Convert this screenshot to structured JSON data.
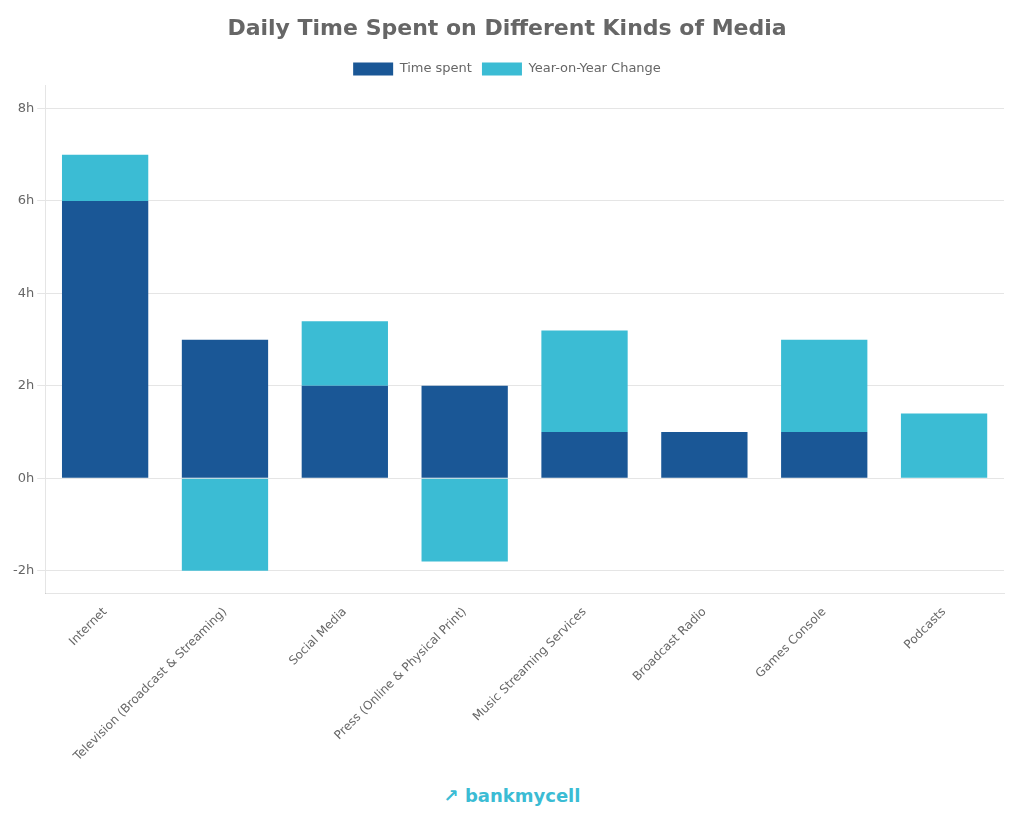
{
  "chart_data": {
    "type": "bar",
    "title": "Daily Time Spent on Different Kinds of Media",
    "categories": [
      "Internet",
      "Television (Broadcast & Streaming)",
      "Social Media",
      "Press (Online & Physical Print)",
      "Music Streaming Services",
      "Broadcast Radio",
      "Games Console",
      "Podcasts"
    ],
    "series": [
      {
        "name": "Time spent",
        "color": "#1a5796",
        "values": [
          6,
          3,
          2,
          2,
          1,
          1,
          1,
          0
        ]
      },
      {
        "name": "Year-on-Year Change",
        "color": "#3bbcd4",
        "values": [
          1,
          -2,
          1.4,
          -1.8,
          2.2,
          0,
          2,
          1.4
        ]
      }
    ],
    "stacked": true,
    "ylim": [
      -2.5,
      8.5
    ],
    "yticks": [
      {
        "value": -2,
        "label": "-2h"
      },
      {
        "value": 0,
        "label": "0h"
      },
      {
        "value": 2,
        "label": "2h"
      },
      {
        "value": 4,
        "label": "4h"
      },
      {
        "value": 6,
        "label": "6h"
      },
      {
        "value": 8,
        "label": "8h"
      }
    ],
    "grid": true,
    "legend": "top",
    "annotations": [
      "↗ bankmycell"
    ]
  }
}
